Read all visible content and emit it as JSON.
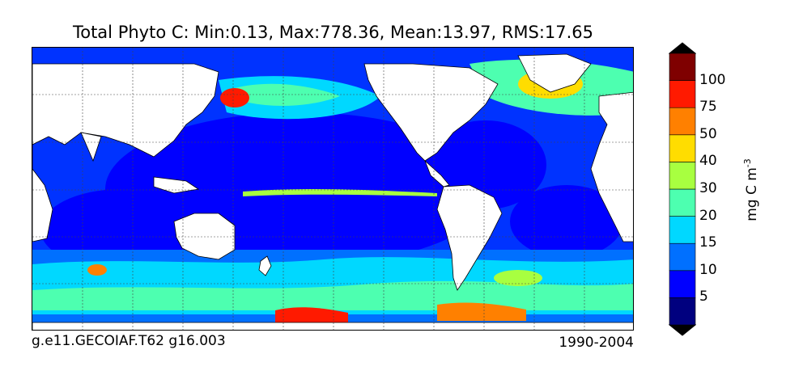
{
  "title": "Total Phyto C: Min:0.13, Max:778.36, Mean:13.97, RMS:17.65",
  "caption_left": "g.e11.GECOIAF.T62 g16.003",
  "caption_right": "1990-2004",
  "colorbar": {
    "units_base": "mg C m",
    "units_exp": "-3",
    "tick_labels": [
      "5",
      "10",
      "15",
      "20",
      "30",
      "40",
      "50",
      "75",
      "100"
    ],
    "levels": [
      0,
      5,
      10,
      15,
      20,
      30,
      40,
      50,
      75,
      100
    ],
    "colors": [
      "#00007f",
      "#0000ff",
      "#0070ff",
      "#00d8ff",
      "#4dffb0",
      "#a8ff40",
      "#ffdd00",
      "#ff8000",
      "#ff1a00",
      "#7f0000"
    ],
    "extend": "both"
  },
  "map": {
    "projection": "global cylindrical, 0-360 longitude",
    "gridlines": "dashed",
    "land_color": "#ffffff",
    "ocean_base_color": "#1f67ff"
  }
}
